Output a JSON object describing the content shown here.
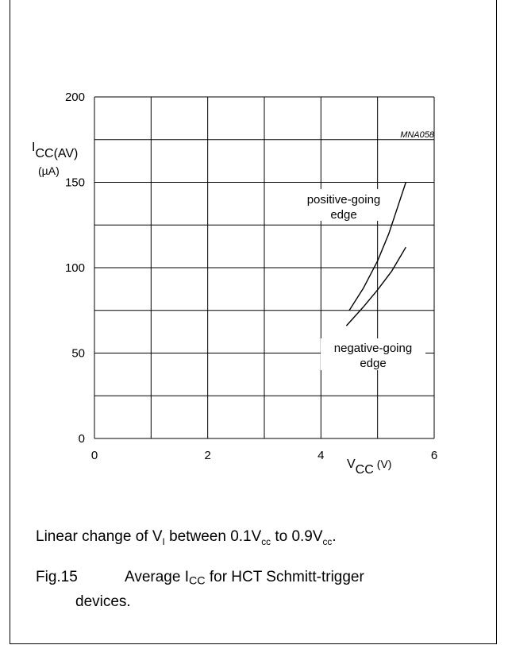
{
  "chart_data": {
    "type": "line",
    "figure_code": "MNA058",
    "xlabel_main": "V",
    "xlabel_sub": "CC",
    "xlabel_unit": "(V)",
    "ylabel_main": "I",
    "ylabel_sub": "CC(AV)",
    "ylabel_unit": "(µA)",
    "xlim": [
      0,
      6
    ],
    "ylim": [
      0,
      200
    ],
    "x_ticks": [
      0,
      2,
      4,
      6
    ],
    "y_ticks": [
      0,
      50,
      100,
      150,
      200
    ],
    "x_grid_step": 1,
    "y_grid_step": 25,
    "grid": true,
    "series": [
      {
        "name_line1": "positive-going",
        "name_line2": "edge",
        "x": [
          4.5,
          4.75,
          5.0,
          5.2,
          5.35,
          5.5
        ],
        "y": [
          75,
          88,
          104,
          120,
          135,
          150
        ]
      },
      {
        "name_line1": "negative-going",
        "name_line2": "edge",
        "x": [
          4.45,
          4.75,
          5.0,
          5.25,
          5.5
        ],
        "y": [
          66,
          77,
          87,
          98,
          112
        ]
      }
    ]
  },
  "note": {
    "prefix": "Linear change of V",
    "sub_i": "I",
    "mid": " between 0.1V",
    "sub_cc1": "cc",
    "mid2": " to 0.9V",
    "sub_cc2": "cc",
    "suffix": "."
  },
  "caption": {
    "fig": "Fig.15",
    "text_a": "Average I",
    "text_sub": "CC",
    "text_b": " for HCT Schmitt-trigger",
    "line2": "devices."
  }
}
